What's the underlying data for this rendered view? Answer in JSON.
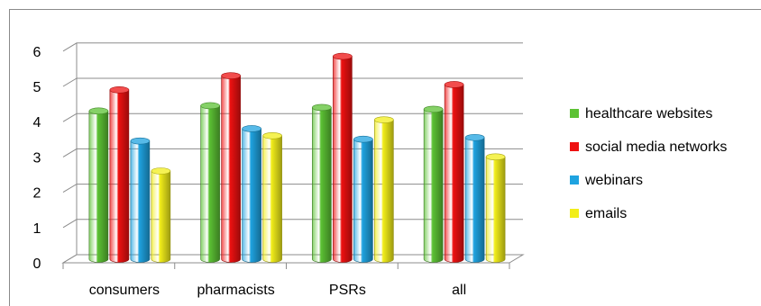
{
  "chart_data": {
    "type": "bar",
    "categories": [
      "consumers",
      "pharmacists",
      "PSRs",
      "all"
    ],
    "series": [
      {
        "name": "healthcare websites",
        "values": [
          4.2,
          4.35,
          4.3,
          4.25
        ],
        "color": "#5cc234"
      },
      {
        "name": "social media networks",
        "values": [
          4.8,
          5.2,
          5.75,
          4.95
        ],
        "color": "#ee1111"
      },
      {
        "name": "webinars",
        "values": [
          3.35,
          3.7,
          3.4,
          3.45
        ],
        "color": "#1fa3e0"
      },
      {
        "name": "emails",
        "values": [
          2.5,
          3.5,
          3.95,
          2.9
        ],
        "color": "#f2ee1a"
      }
    ],
    "ylim": [
      0,
      6
    ],
    "yticks": [
      "0",
      "1",
      "2",
      "3",
      "4",
      "5",
      "6"
    ],
    "title": "",
    "xlabel": "",
    "ylabel": "",
    "grid": true,
    "legend_position": "right",
    "style": "3d-cylinder"
  }
}
